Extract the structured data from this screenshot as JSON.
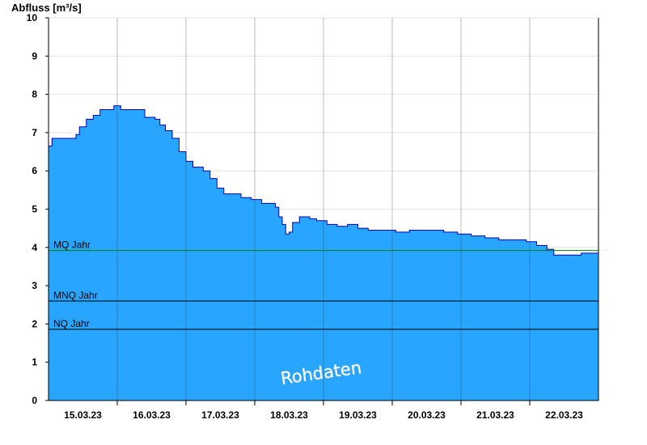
{
  "chart_data": {
    "type": "area",
    "ylabel": "Abfluss [m³/s]",
    "ylim": [
      0,
      10
    ],
    "yticks": [
      0,
      1,
      2,
      3,
      4,
      5,
      6,
      7,
      8,
      9,
      10
    ],
    "xlim_days": [
      14.5,
      22.5
    ],
    "xticks": [
      {
        "day": 15,
        "label": "15.03.23"
      },
      {
        "day": 16,
        "label": "16.03.23"
      },
      {
        "day": 17,
        "label": "17.03.23"
      },
      {
        "day": 18,
        "label": "18.03.23"
      },
      {
        "day": 19,
        "label": "19.03.23"
      },
      {
        "day": 20,
        "label": "20.03.23"
      },
      {
        "day": 21,
        "label": "21.03.23"
      },
      {
        "day": 22,
        "label": "22.03.23"
      }
    ],
    "grid": true,
    "series": [
      {
        "points": [
          [
            14.5,
            6.65
          ],
          [
            14.55,
            6.85
          ],
          [
            14.65,
            6.85
          ],
          [
            14.8,
            6.85
          ],
          [
            14.9,
            6.95
          ],
          [
            14.95,
            7.15
          ],
          [
            15.05,
            7.35
          ],
          [
            15.15,
            7.45
          ],
          [
            15.25,
            7.6
          ],
          [
            15.45,
            7.7
          ],
          [
            15.55,
            7.6
          ],
          [
            15.8,
            7.6
          ],
          [
            15.9,
            7.4
          ],
          [
            16.05,
            7.35
          ],
          [
            16.12,
            7.2
          ],
          [
            16.2,
            7.05
          ],
          [
            16.3,
            6.85
          ],
          [
            16.4,
            6.5
          ],
          [
            16.5,
            6.25
          ],
          [
            16.6,
            6.1
          ],
          [
            16.75,
            6.0
          ],
          [
            16.85,
            5.8
          ],
          [
            16.95,
            5.55
          ],
          [
            17.05,
            5.4
          ],
          [
            17.2,
            5.4
          ],
          [
            17.3,
            5.3
          ],
          [
            17.45,
            5.25
          ],
          [
            17.6,
            5.15
          ],
          [
            17.7,
            5.15
          ],
          [
            17.8,
            5.05
          ],
          [
            17.85,
            4.8
          ],
          [
            17.9,
            4.6
          ],
          [
            17.95,
            4.35
          ],
          [
            18.0,
            4.4
          ],
          [
            18.05,
            4.65
          ],
          [
            18.15,
            4.8
          ],
          [
            18.3,
            4.75
          ],
          [
            18.4,
            4.7
          ],
          [
            18.55,
            4.6
          ],
          [
            18.7,
            4.55
          ],
          [
            18.85,
            4.6
          ],
          [
            19.0,
            4.5
          ],
          [
            19.15,
            4.45
          ],
          [
            19.35,
            4.45
          ],
          [
            19.55,
            4.4
          ],
          [
            19.75,
            4.45
          ],
          [
            19.9,
            4.45
          ],
          [
            20.05,
            4.45
          ],
          [
            20.25,
            4.4
          ],
          [
            20.45,
            4.35
          ],
          [
            20.65,
            4.3
          ],
          [
            20.85,
            4.25
          ],
          [
            21.05,
            4.2
          ],
          [
            21.25,
            4.2
          ],
          [
            21.45,
            4.15
          ],
          [
            21.6,
            4.05
          ],
          [
            21.75,
            3.95
          ],
          [
            21.85,
            3.8
          ],
          [
            21.95,
            3.8
          ],
          [
            22.1,
            3.8
          ],
          [
            22.25,
            3.85
          ],
          [
            22.35,
            3.85
          ],
          [
            22.5,
            3.85
          ]
        ]
      }
    ],
    "reference_lines": [
      {
        "label": "MQ Jahr",
        "value": 3.92,
        "color": "#008000"
      },
      {
        "label": "MNQ Jahr",
        "value": 2.6,
        "color": "#000000"
      },
      {
        "label": "NQ Jahr",
        "value": 1.86,
        "color": "#000000"
      }
    ],
    "watermark": "Rohdaten",
    "colors": {
      "fill": "#28a6ff",
      "outline": "#0000b4",
      "axis": "#000000"
    }
  }
}
